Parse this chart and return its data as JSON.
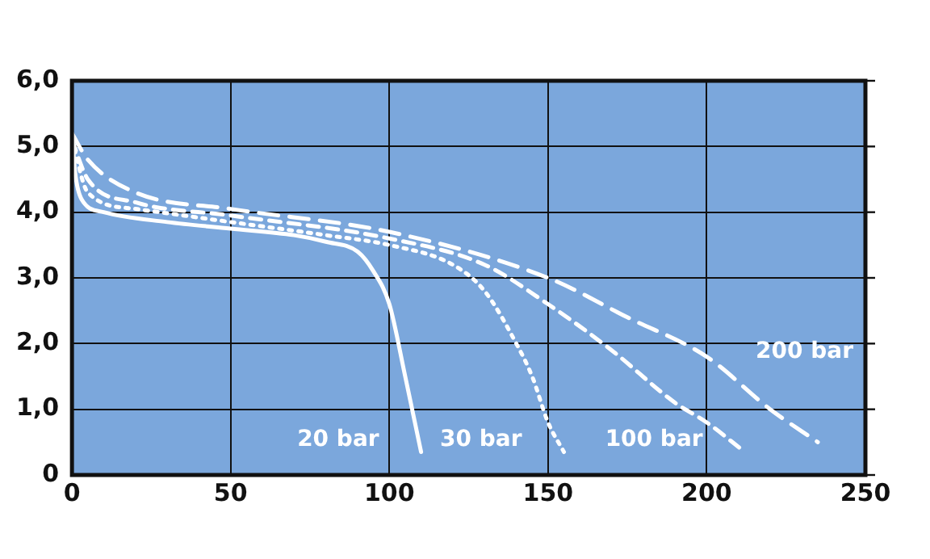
{
  "chart_data": {
    "type": "line",
    "xlim": [
      0,
      250
    ],
    "xticks": [
      0,
      50,
      100,
      150,
      200,
      250
    ],
    "ylim": [
      0,
      6
    ],
    "yticks": [
      {
        "value": 0,
        "label": "0"
      },
      {
        "value": 1,
        "label": "1,0"
      },
      {
        "value": 2,
        "label": "2,0"
      },
      {
        "value": 3,
        "label": "3,0"
      },
      {
        "value": 4,
        "label": "4,0"
      },
      {
        "value": 5,
        "label": "5,0"
      },
      {
        "value": 6,
        "label": "6,0"
      }
    ],
    "grid": true,
    "legend": false,
    "marker": "none",
    "series": [
      {
        "name": "20 bar",
        "color": "#ffffff",
        "line_style": "solid",
        "x": [
          0,
          1,
          3,
          10,
          30,
          50,
          70,
          80,
          90,
          95,
          100,
          105,
          110
        ],
        "values": [
          5.2,
          4.6,
          4.2,
          4.0,
          3.85,
          3.75,
          3.65,
          3.55,
          3.4,
          3.1,
          2.6,
          1.5,
          0.35
        ]
      },
      {
        "name": "30 bar",
        "color": "#ffffff",
        "line_style": "dotted",
        "x": [
          0,
          5,
          20,
          50,
          80,
          100,
          120,
          130,
          140,
          145,
          150,
          155
        ],
        "values": [
          5.1,
          4.3,
          4.05,
          3.85,
          3.65,
          3.5,
          3.2,
          2.8,
          2.0,
          1.5,
          0.8,
          0.35
        ]
      },
      {
        "name": "100 bar",
        "color": "#ffffff",
        "line_style": "dashdot",
        "x": [
          0,
          5,
          20,
          50,
          100,
          130,
          150,
          170,
          190,
          200,
          212
        ],
        "values": [
          5.1,
          4.5,
          4.15,
          3.95,
          3.6,
          3.2,
          2.6,
          1.9,
          1.1,
          0.8,
          0.35
        ]
      },
      {
        "name": "200 bar",
        "color": "#ffffff",
        "line_style": "dashed",
        "x": [
          0,
          5,
          20,
          50,
          100,
          150,
          175,
          200,
          220,
          235
        ],
        "values": [
          5.2,
          4.8,
          4.3,
          4.05,
          3.7,
          3.0,
          2.4,
          1.8,
          1.0,
          0.5
        ]
      }
    ]
  }
}
